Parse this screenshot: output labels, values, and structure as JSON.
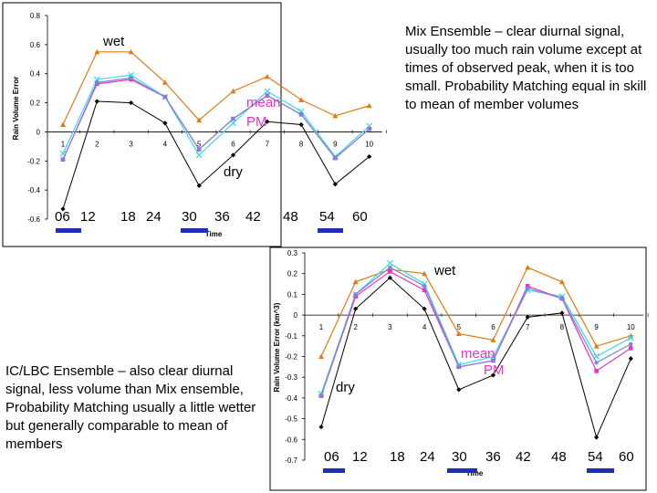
{
  "colors": {
    "orange": "#E07B14",
    "cyan": "#3FD8E8",
    "pink": "#E832C8",
    "blue": "#7B86D6",
    "black": "#000000",
    "marker_bar": "#1E2FB8"
  },
  "captions": {
    "top": "Mix Ensemble – clear diurnal signal, usually too much rain volume except at times of observed peak, when it is too small.   Probability Matching equal in skill to mean of member volumes",
    "bottom": "IC/LBC Ensemble – also clear diurnal signal, less volume than Mix ensemble, Probability Matching usually a little wetter but generally comparable to mean of members"
  },
  "chart_data": [
    {
      "type": "line",
      "xlabel": "Time",
      "ylabel": "Rain Volume Error",
      "ylim": [
        -0.6,
        0.8
      ],
      "yticks": [
        "0.8",
        "0.6",
        "0.4",
        "0.2",
        "0",
        "-0.2",
        "-0.4",
        "-0.6"
      ],
      "categories": [
        "1",
        "2",
        "3",
        "4",
        "5",
        "6",
        "7",
        "8",
        "9",
        "10"
      ],
      "hour_labels": [
        "06",
        "12",
        "18",
        "24",
        "30",
        "36",
        "42",
        "48",
        "54",
        "60"
      ],
      "annotations": {
        "wet": "wet",
        "mean": "mean",
        "pm": "PM",
        "dry": "dry"
      },
      "series": [
        {
          "color": "orange",
          "marker": "triangle",
          "values": [
            0.05,
            0.55,
            0.55,
            0.34,
            0.08,
            0.28,
            0.38,
            0.22,
            0.11,
            0.18
          ]
        },
        {
          "color": "cyan",
          "marker": "x",
          "values": [
            -0.15,
            0.36,
            0.39,
            0.24,
            -0.16,
            0.06,
            0.28,
            0.14,
            -0.17,
            0.04
          ]
        },
        {
          "color": "pink",
          "marker": "square",
          "values": [
            -0.19,
            0.33,
            0.36,
            0.24,
            -0.12,
            0.09,
            0.25,
            0.12,
            -0.18,
            0.02
          ]
        },
        {
          "color": "blue",
          "marker": "dot",
          "values": [
            -0.19,
            0.34,
            0.37,
            0.24,
            -0.12,
            0.09,
            0.25,
            0.12,
            -0.18,
            0.02
          ]
        },
        {
          "color": "black",
          "marker": "diamond",
          "values": [
            -0.53,
            0.21,
            0.2,
            0.06,
            -0.37,
            -0.16,
            0.07,
            0.05,
            -0.36,
            -0.17
          ]
        }
      ]
    },
    {
      "type": "line",
      "xlabel": "Time",
      "ylabel": "Rain Volume Error (km^3)",
      "ylim": [
        -0.7,
        0.3
      ],
      "yticks": [
        "0.3",
        "0.2",
        "0.1",
        "0",
        "-0.1",
        "-0.2",
        "-0.3",
        "-0.4",
        "-0.5",
        "-0.6",
        "-0.7"
      ],
      "categories": [
        "1",
        "2",
        "3",
        "4",
        "5",
        "6",
        "7",
        "8",
        "9",
        "10"
      ],
      "hour_labels": [
        "06",
        "12",
        "18",
        "24",
        "30",
        "36",
        "42",
        "48",
        "54",
        "60"
      ],
      "annotations": {
        "wet": "wet",
        "mean": "mean",
        "pm": "PM",
        "dry": "dry"
      },
      "series": [
        {
          "color": "orange",
          "marker": "triangle",
          "values": [
            -0.2,
            0.16,
            0.22,
            0.2,
            -0.09,
            -0.12,
            0.23,
            0.16,
            -0.15,
            -0.1
          ]
        },
        {
          "color": "cyan",
          "marker": "x",
          "values": [
            -0.38,
            0.1,
            0.25,
            0.15,
            -0.24,
            -0.2,
            0.12,
            0.09,
            -0.2,
            -0.11
          ]
        },
        {
          "color": "pink",
          "marker": "square",
          "values": [
            -0.39,
            0.09,
            0.21,
            0.12,
            -0.25,
            -0.22,
            0.14,
            0.08,
            -0.27,
            -0.16
          ]
        },
        {
          "color": "blue",
          "marker": "dot",
          "values": [
            -0.39,
            0.1,
            0.23,
            0.14,
            -0.25,
            -0.22,
            0.13,
            0.08,
            -0.23,
            -0.14
          ]
        },
        {
          "color": "black",
          "marker": "diamond",
          "values": [
            -0.54,
            0.03,
            0.18,
            0.03,
            -0.36,
            -0.29,
            -0.01,
            0.01,
            -0.59,
            -0.21
          ]
        }
      ]
    }
  ]
}
